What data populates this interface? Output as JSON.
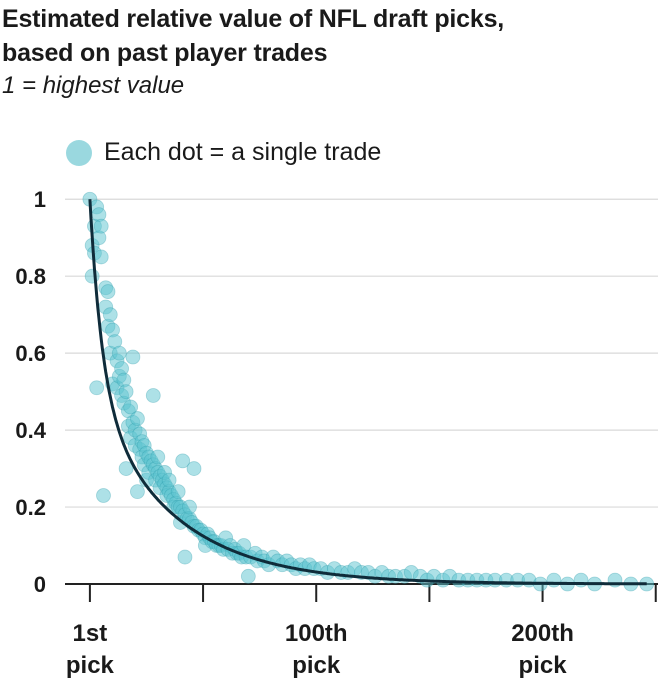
{
  "title_line1": "Estimated relative value of NFL draft picks,",
  "title_line2": "based on past player trades",
  "subtitle": "1 = highest value",
  "legend_label": "Each dot = a single trade",
  "colors": {
    "dot": "#5cc3cf",
    "dot_stroke": "#2a9aa8",
    "curve": "#0f2c3a",
    "grid": "#d9d9d9",
    "axis": "#222222"
  },
  "chart_data": {
    "type": "scatter",
    "title": "Estimated relative value of NFL draft picks, based on past player trades",
    "subtitle": "1 = highest value",
    "xlabel": "",
    "ylabel": "",
    "xlim": [
      -10,
      252
    ],
    "ylim": [
      0,
      1.05
    ],
    "y_ticks": [
      {
        "value": 1,
        "label": "1"
      },
      {
        "value": 0.8,
        "label": "0.8"
      },
      {
        "value": 0.6,
        "label": "0.6"
      },
      {
        "value": 0.4,
        "label": "0.4"
      },
      {
        "value": 0.2,
        "label": "0.2"
      },
      {
        "value": 0,
        "label": "0"
      }
    ],
    "x_ticks": [
      {
        "value": 1,
        "line1": "1st",
        "line2": "pick"
      },
      {
        "value": 51,
        "line1": "",
        "line2": ""
      },
      {
        "value": 101,
        "line1": "100th",
        "line2": "pick"
      },
      {
        "value": 151,
        "line1": "",
        "line2": ""
      },
      {
        "value": 201,
        "line1": "200th",
        "line2": "pick"
      },
      {
        "value": 251,
        "line1": "",
        "line2": ""
      }
    ],
    "grid": "horizontal",
    "legend_position": "top-left",
    "trend_curve": "exponential decay through the points",
    "points": [
      [
        1,
        1.0
      ],
      [
        2,
        0.88
      ],
      [
        2,
        0.8
      ],
      [
        3,
        0.93
      ],
      [
        3,
        0.86
      ],
      [
        4,
        0.98
      ],
      [
        4,
        0.51
      ],
      [
        5,
        0.96
      ],
      [
        5,
        0.9
      ],
      [
        6,
        0.85
      ],
      [
        6,
        0.93
      ],
      [
        7,
        0.23
      ],
      [
        8,
        0.77
      ],
      [
        8,
        0.72
      ],
      [
        9,
        0.76
      ],
      [
        9,
        0.67
      ],
      [
        10,
        0.7
      ],
      [
        10,
        0.6
      ],
      [
        11,
        0.66
      ],
      [
        11,
        0.52
      ],
      [
        12,
        0.63
      ],
      [
        13,
        0.58
      ],
      [
        13,
        0.51
      ],
      [
        14,
        0.6
      ],
      [
        14,
        0.54
      ],
      [
        15,
        0.56
      ],
      [
        15,
        0.49
      ],
      [
        16,
        0.53
      ],
      [
        16,
        0.47
      ],
      [
        17,
        0.5
      ],
      [
        17,
        0.3
      ],
      [
        18,
        0.45
      ],
      [
        18,
        0.41
      ],
      [
        19,
        0.46
      ],
      [
        19,
        0.38
      ],
      [
        20,
        0.42
      ],
      [
        20,
        0.59
      ],
      [
        21,
        0.4
      ],
      [
        21,
        0.36
      ],
      [
        22,
        0.43
      ],
      [
        22,
        0.24
      ],
      [
        23,
        0.39
      ],
      [
        23,
        0.35
      ],
      [
        24,
        0.37
      ],
      [
        24,
        0.33
      ],
      [
        25,
        0.36
      ],
      [
        25,
        0.31
      ],
      [
        26,
        0.34
      ],
      [
        26,
        0.27
      ],
      [
        27,
        0.33
      ],
      [
        27,
        0.29
      ],
      [
        28,
        0.32
      ],
      [
        29,
        0.31
      ],
      [
        29,
        0.49
      ],
      [
        30,
        0.3
      ],
      [
        30,
        0.27
      ],
      [
        31,
        0.29
      ],
      [
        31,
        0.33
      ],
      [
        32,
        0.28
      ],
      [
        32,
        0.25
      ],
      [
        33,
        0.27
      ],
      [
        34,
        0.26
      ],
      [
        34,
        0.29
      ],
      [
        35,
        0.25
      ],
      [
        35,
        0.23
      ],
      [
        36,
        0.24
      ],
      [
        36,
        0.27
      ],
      [
        37,
        0.23
      ],
      [
        38,
        0.22
      ],
      [
        38,
        0.2
      ],
      [
        39,
        0.21
      ],
      [
        40,
        0.2
      ],
      [
        40,
        0.24
      ],
      [
        41,
        0.2
      ],
      [
        41,
        0.16
      ],
      [
        42,
        0.19
      ],
      [
        42,
        0.32
      ],
      [
        43,
        0.18
      ],
      [
        43,
        0.07
      ],
      [
        44,
        0.17
      ],
      [
        45,
        0.17
      ],
      [
        45,
        0.2
      ],
      [
        46,
        0.16
      ],
      [
        47,
        0.15
      ],
      [
        47,
        0.3
      ],
      [
        48,
        0.15
      ],
      [
        49,
        0.14
      ],
      [
        50,
        0.14
      ],
      [
        51,
        0.13
      ],
      [
        52,
        0.12
      ],
      [
        52,
        0.1
      ],
      [
        53,
        0.13
      ],
      [
        54,
        0.12
      ],
      [
        55,
        0.11
      ],
      [
        56,
        0.11
      ],
      [
        57,
        0.1
      ],
      [
        58,
        0.1
      ],
      [
        59,
        0.1
      ],
      [
        60,
        0.09
      ],
      [
        61,
        0.12
      ],
      [
        62,
        0.09
      ],
      [
        63,
        0.1
      ],
      [
        64,
        0.08
      ],
      [
        65,
        0.09
      ],
      [
        66,
        0.08
      ],
      [
        67,
        0.08
      ],
      [
        68,
        0.07
      ],
      [
        69,
        0.1
      ],
      [
        70,
        0.07
      ],
      [
        71,
        0.02
      ],
      [
        72,
        0.07
      ],
      [
        74,
        0.08
      ],
      [
        75,
        0.06
      ],
      [
        77,
        0.07
      ],
      [
        78,
        0.06
      ],
      [
        80,
        0.05
      ],
      [
        82,
        0.07
      ],
      [
        84,
        0.06
      ],
      [
        86,
        0.05
      ],
      [
        88,
        0.06
      ],
      [
        90,
        0.05
      ],
      [
        92,
        0.04
      ],
      [
        94,
        0.05
      ],
      [
        96,
        0.04
      ],
      [
        98,
        0.05
      ],
      [
        100,
        0.04
      ],
      [
        103,
        0.04
      ],
      [
        106,
        0.03
      ],
      [
        109,
        0.04
      ],
      [
        112,
        0.03
      ],
      [
        115,
        0.03
      ],
      [
        118,
        0.04
      ],
      [
        121,
        0.03
      ],
      [
        124,
        0.03
      ],
      [
        127,
        0.02
      ],
      [
        130,
        0.03
      ],
      [
        133,
        0.02
      ],
      [
        136,
        0.02
      ],
      [
        140,
        0.02
      ],
      [
        143,
        0.03
      ],
      [
        147,
        0.02
      ],
      [
        150,
        0.01
      ],
      [
        153,
        0.02
      ],
      [
        157,
        0.01
      ],
      [
        160,
        0.02
      ],
      [
        164,
        0.01
      ],
      [
        168,
        0.01
      ],
      [
        172,
        0.01
      ],
      [
        176,
        0.01
      ],
      [
        180,
        0.01
      ],
      [
        185,
        0.01
      ],
      [
        190,
        0.01
      ],
      [
        195,
        0.01
      ],
      [
        200,
        0.0
      ],
      [
        206,
        0.01
      ],
      [
        212,
        0.0
      ],
      [
        218,
        0.01
      ],
      [
        224,
        0.0
      ],
      [
        233,
        0.01
      ],
      [
        240,
        0.0
      ],
      [
        247,
        0.0
      ]
    ]
  }
}
